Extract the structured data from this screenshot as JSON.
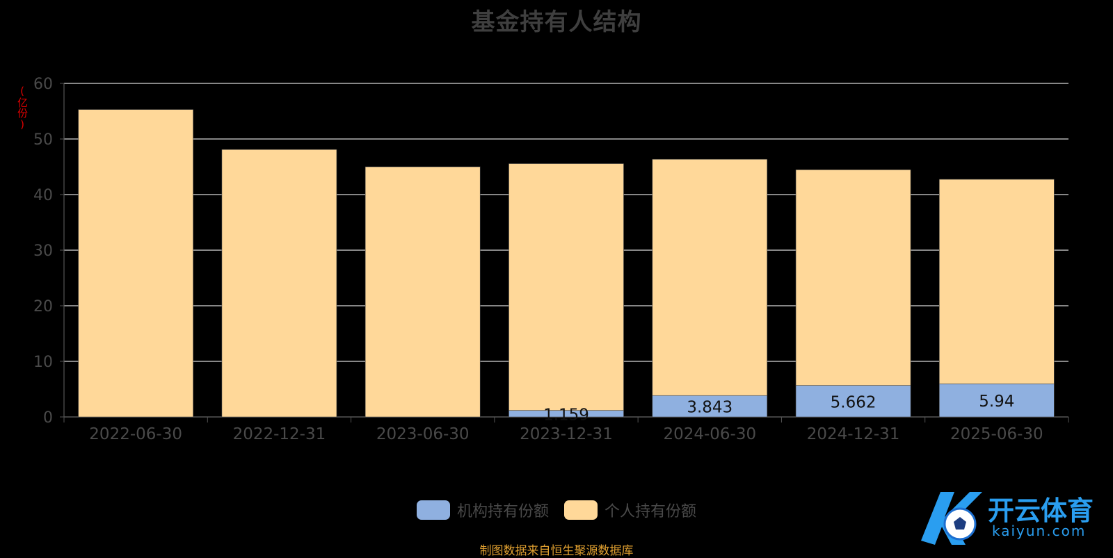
{
  "header": {
    "title": "基金持有人结构"
  },
  "axis": {
    "unit": "(亿份)"
  },
  "legend": {
    "institution": "机构持有份额",
    "individual": "个人持有份额"
  },
  "footer": {
    "source": "制图数据来自恒生聚源数据库"
  },
  "logo": {
    "name": "开云体育",
    "url": "kaiyun.com"
  },
  "colors": {
    "institution": "#8fb0e0",
    "individual": "#ffd899",
    "background": "#000000"
  },
  "chart_data": {
    "type": "bar",
    "stacked": true,
    "title": "基金持有人结构",
    "ylabel": "(亿份)",
    "ylim": [
      0,
      60
    ],
    "yticks": [
      0,
      10,
      20,
      30,
      40,
      50,
      60
    ],
    "grid": true,
    "legend_position": "bottom",
    "categories": [
      "2022-06-30",
      "2022-12-31",
      "2023-06-30",
      "2023-12-31",
      "2024-06-30",
      "2024-12-31",
      "2025-06-30"
    ],
    "series": [
      {
        "name": "机构持有份额",
        "values": [
          0,
          0,
          0,
          1.159,
          3.843,
          5.662,
          5.94
        ],
        "labels": [
          "",
          "",
          "",
          "1.159",
          "3.843",
          "5.662",
          "5.94"
        ]
      },
      {
        "name": "个人持有份额",
        "values": [
          55.3,
          48.1,
          45.0,
          44.4,
          42.5,
          38.8,
          36.8
        ]
      }
    ]
  }
}
